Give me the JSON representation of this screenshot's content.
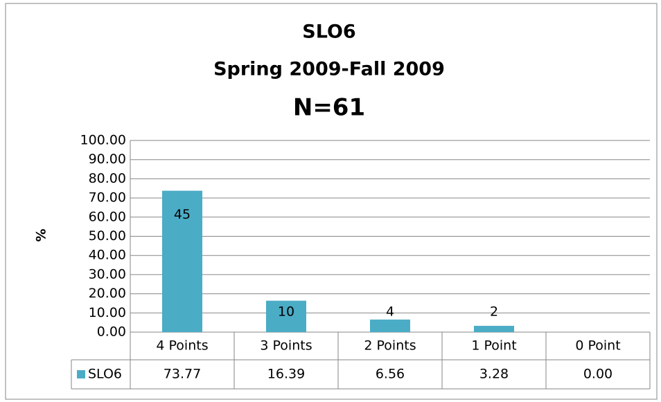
{
  "chart_data": {
    "type": "bar",
    "title": "SLO6",
    "subtitle": "Spring 2009-Fall 2009",
    "note": "N=61",
    "ylabel": "%",
    "categories": [
      "4 Points",
      "3 Points",
      "2 Points",
      "1 Point",
      "0 Point"
    ],
    "series": [
      {
        "name": "SLO6",
        "color": "#4bacc6",
        "values": [
          73.77,
          16.39,
          6.56,
          3.28,
          0
        ],
        "value_labels": [
          "73.77",
          "16.39",
          "6.56",
          "3.28",
          "0.00"
        ],
        "data_labels": [
          45,
          10,
          4,
          2,
          null
        ]
      }
    ],
    "ylim": [
      0,
      100
    ],
    "yticks": [
      {
        "value": 0,
        "label": "0.00"
      },
      {
        "value": 10,
        "label": "10.00"
      },
      {
        "value": 20,
        "label": "20.00"
      },
      {
        "value": 30,
        "label": "30.00"
      },
      {
        "value": 40,
        "label": "40.00"
      },
      {
        "value": 50,
        "label": "50.00"
      },
      {
        "value": 60,
        "label": "60.00"
      },
      {
        "value": 70,
        "label": "70.00"
      },
      {
        "value": 80,
        "label": "80.00"
      },
      {
        "value": 90,
        "label": "90.00"
      },
      {
        "value": 100,
        "label": "100.00"
      }
    ],
    "grid": true,
    "data_table": true
  }
}
